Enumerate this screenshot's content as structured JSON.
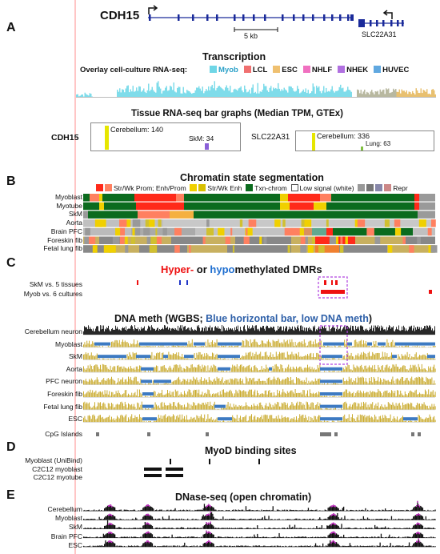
{
  "panels": {
    "A": {
      "letter": "A",
      "gene1": "CDH15",
      "gene2": "SLC22A31",
      "scale": "5 kb",
      "transcription_title": "Transcription",
      "overlay_label": "Overlay cell-culture RNA-seq:",
      "cultures": [
        {
          "name": "Myob",
          "color": "#6fd6e6"
        },
        {
          "name": "LCL",
          "color": "#f07070"
        },
        {
          "name": "ESC",
          "color": "#efc070"
        },
        {
          "name": "NHLF",
          "color": "#f070c0"
        },
        {
          "name": "NHEK",
          "color": "#b070e0"
        },
        {
          "name": "HUVEC",
          "color": "#60a8e0"
        }
      ],
      "tissue_title": "Tissue RNA-seq bar graphs (Median TPM, GTEx)",
      "cdh15_box": {
        "gene": "CDH15",
        "top": "Cerebellum: 140",
        "second": "SkM: 34"
      },
      "slc_box": {
        "gene": "SLC22A31",
        "top": "Cerebellum: 336",
        "second": "Lung: 63"
      }
    },
    "B": {
      "letter": "B",
      "title": "Chromatin state segmentation",
      "legend": [
        "Str/Wk Prom; Enh/Prom",
        "Str/Wk Enh",
        "Txn-chrom",
        "Low signal (white)",
        "Repr"
      ],
      "tracks": [
        "Myoblast",
        "Myotube",
        "SkM",
        "Aorta",
        "Brain PFC",
        "Foreskin fib",
        "Fetal lung fib"
      ]
    },
    "C": {
      "letter": "C",
      "title_hyper": "Hyper-",
      "title_or": " or ",
      "title_hypo": "hypo",
      "title_rest": "methylated DMRs",
      "dmr_rows": [
        "SkM vs. 5 tissues",
        "Myob vs. 6 cultures"
      ],
      "wgbs_title_pre": "DNA meth (WGBS; ",
      "wgbs_title_blue": "Blue horizontal bar, low DNA meth",
      "wgbs_title_post": ")",
      "wgbs_tracks": [
        "Cerebellum neuron",
        "Myoblast",
        "SkM",
        "Aorta",
        "PFC neuron",
        "Foreskin fib",
        "Fetal lung fib",
        "ESC"
      ],
      "cpg_label": "CpG Islands"
    },
    "D": {
      "letter": "D",
      "title": "MyoD binding sites",
      "tracks": [
        "Myoblast (UniBind)",
        "C2C12 myoblast",
        "C2C12 myotube"
      ]
    },
    "E": {
      "letter": "E",
      "title": "DNase-seq (open chromatin)",
      "tracks": [
        "Cerebellum",
        "Myoblast",
        "SkM",
        "Brain PFC",
        "ESC"
      ]
    }
  },
  "colors": {
    "prom": "#ff2a1a",
    "prom2": "#ff8060",
    "enh": "#f0d000",
    "txn": "#0b6b1e",
    "low": "#ffffff",
    "repr": "#9a9a9a",
    "meth_gold": "#c9aa2c",
    "hypometh_blue": "#3d7ac2",
    "hyper_red": "#ee1111",
    "hypo_blue": "#1f35c7"
  }
}
